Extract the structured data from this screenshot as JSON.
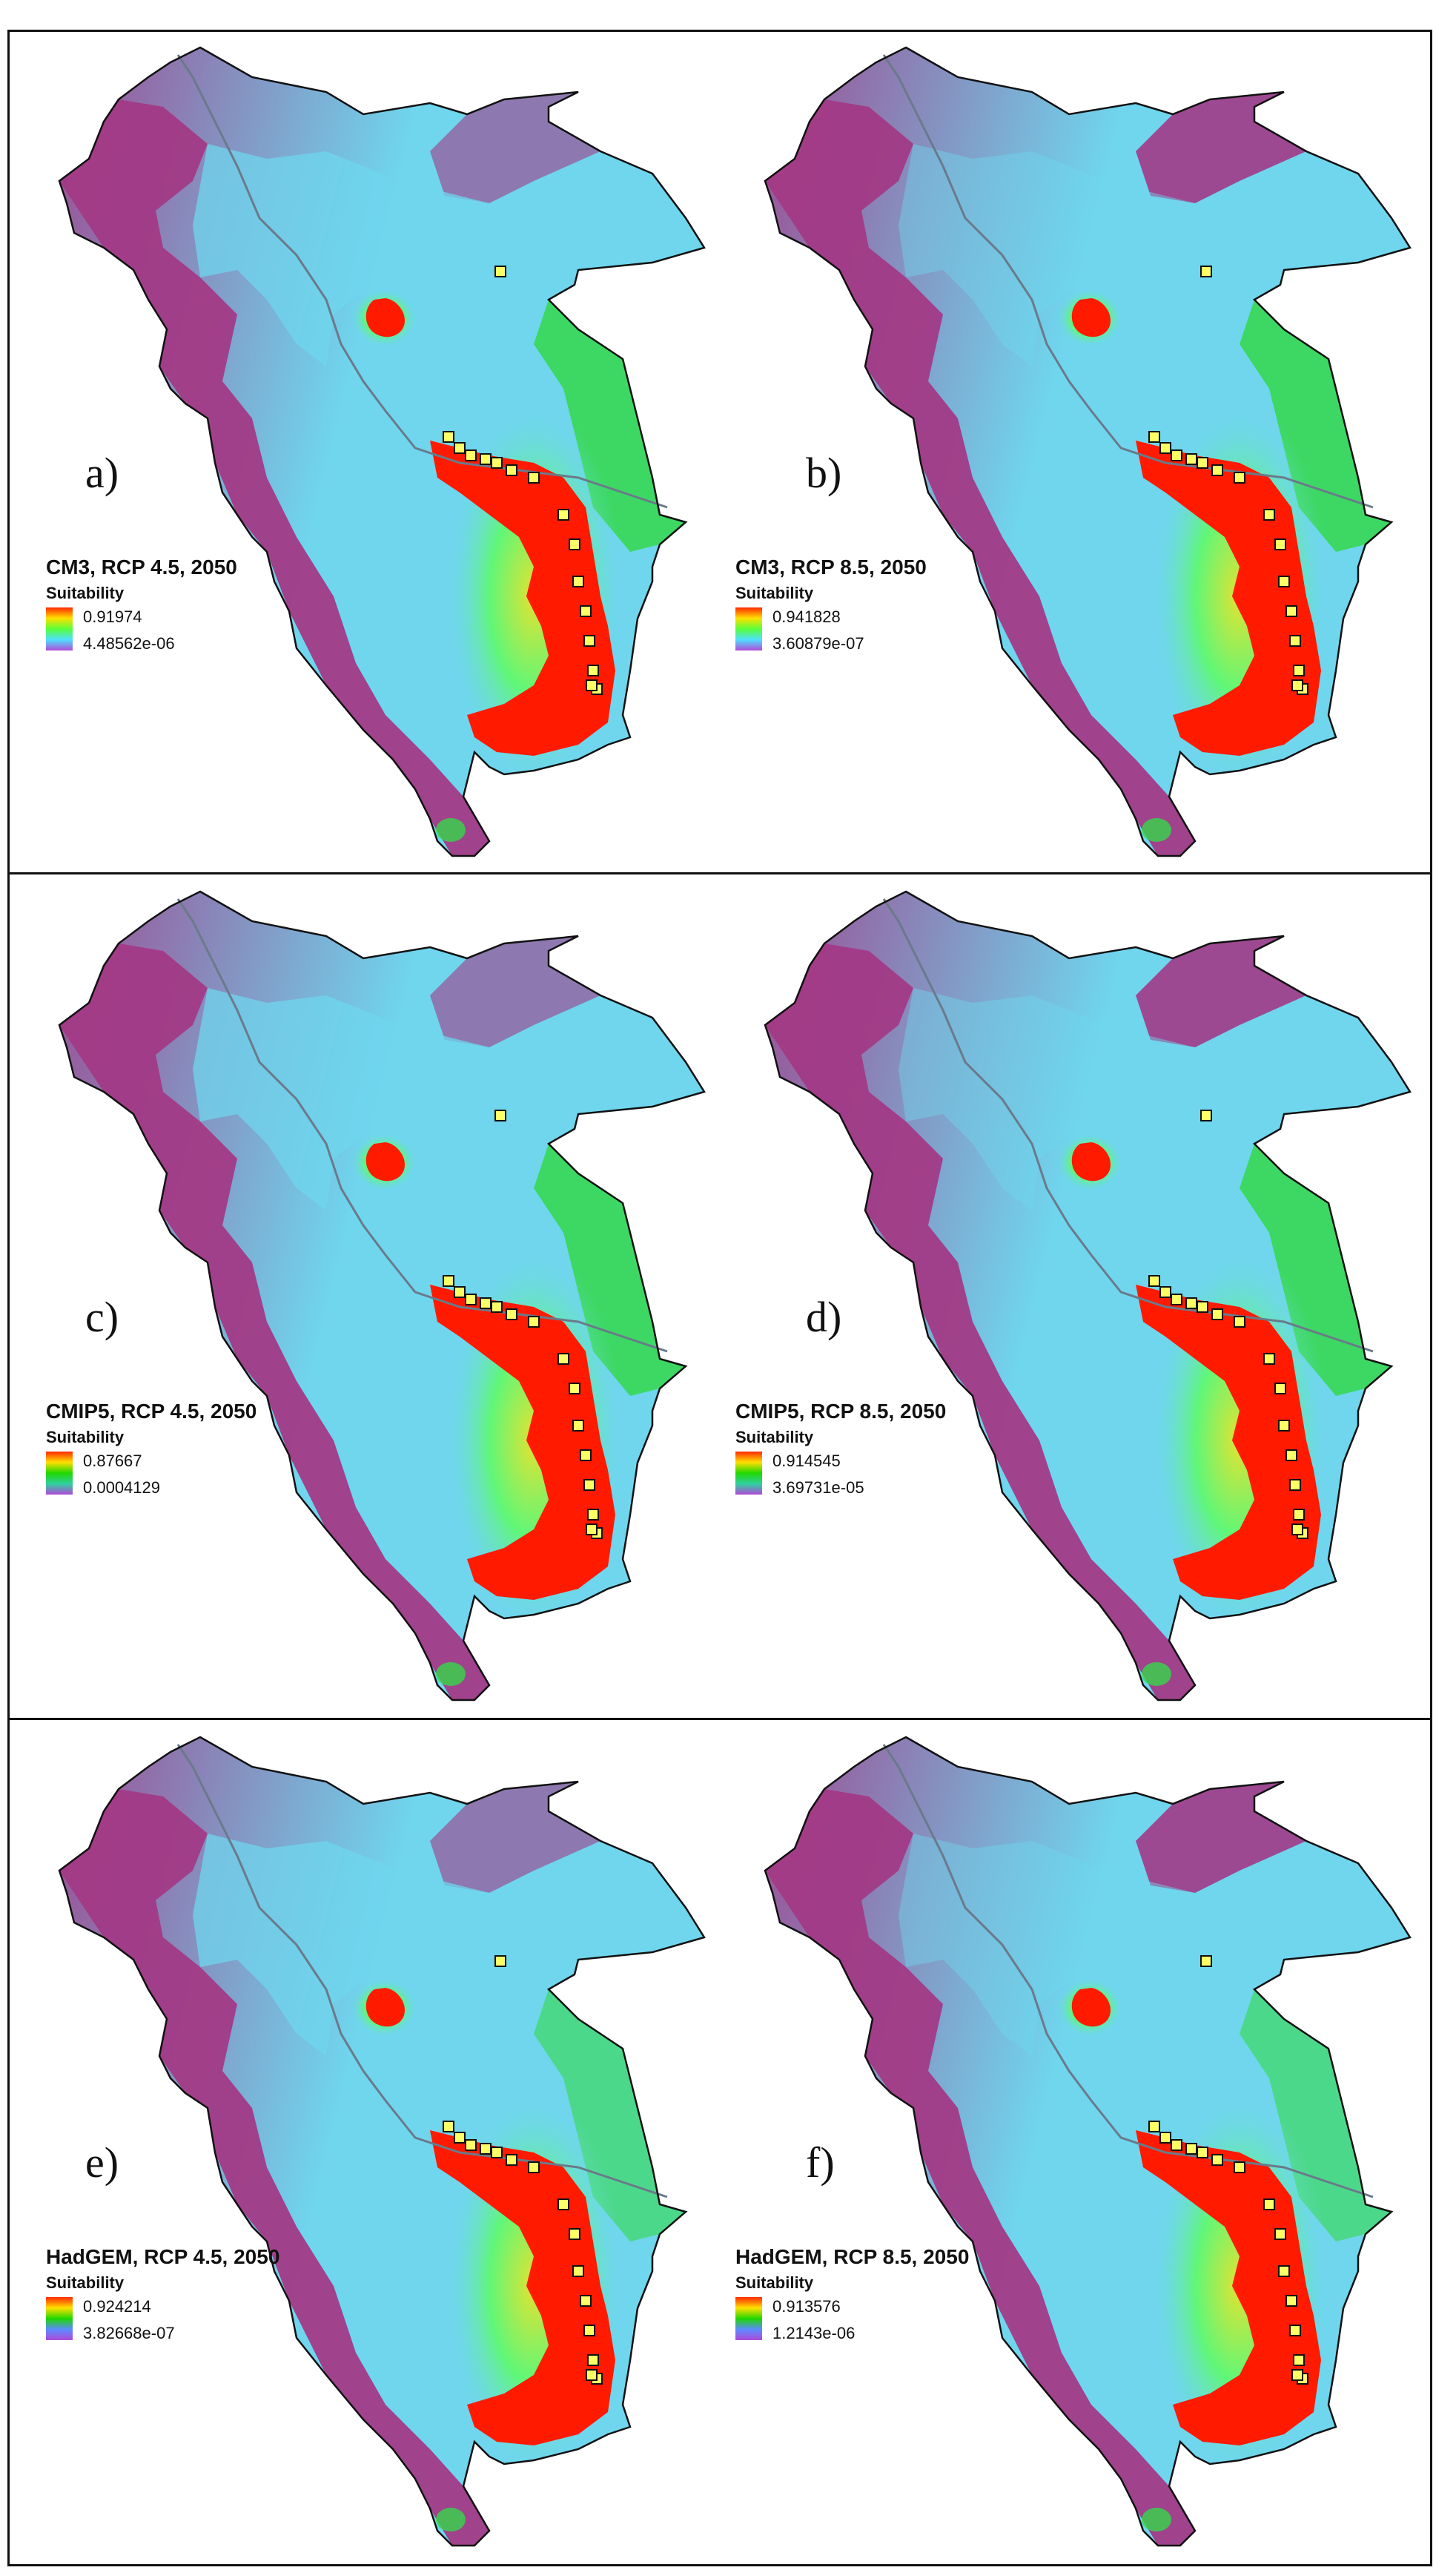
{
  "panels": [
    {
      "letter": "a)",
      "title": "CM3, RCP 4.5, 2050",
      "legend_label": "Suitability",
      "max": "0.91974",
      "min": "4.48562e-06",
      "ramp": [
        "#ff2a00",
        "#ffe000",
        "#58ff3a",
        "#4fe0ff",
        "#b04ad8"
      ]
    },
    {
      "letter": "b)",
      "title": "CM3, RCP 8.5, 2050",
      "legend_label": "Suitability",
      "max": "0.941828",
      "min": "3.60879e-07",
      "ramp": [
        "#ff2a00",
        "#ffe000",
        "#58ff3a",
        "#4fe0ff",
        "#b04ad8"
      ]
    },
    {
      "letter": "c)",
      "title": "CMIP5, RCP 4.5, 2050",
      "legend_label": "Suitability",
      "max": "0.87667",
      "min": "0.0004129",
      "ramp": [
        "#ff2a00",
        "#ffe000",
        "#20d800",
        "#2fd0a0",
        "#b04ad8"
      ]
    },
    {
      "letter": "d)",
      "title": "CMIP5, RCP 8.5, 2050",
      "legend_label": "Suitability",
      "max": "0.914545",
      "min": "3.69731e-05",
      "ramp": [
        "#ff2a00",
        "#ffe000",
        "#20d800",
        "#2fd0a0",
        "#b04ad8"
      ]
    },
    {
      "letter": "e)",
      "title": "HadGEM, RCP 4.5, 2050",
      "legend_label": "Suitability",
      "max": "0.924214",
      "min": "3.82668e-07",
      "ramp": [
        "#ff2a00",
        "#ffe000",
        "#20d800",
        "#5a8cff",
        "#b04ad8"
      ]
    },
    {
      "letter": "f)",
      "title": "HadGEM, RCP 8.5, 2050",
      "legend_label": "Suitability",
      "max": "0.913576",
      "min": "1.2143e-06",
      "ramp": [
        "#ff2a00",
        "#ffe000",
        "#20d800",
        "#5a8cff",
        "#b04ad8"
      ]
    }
  ],
  "colors": {
    "outline": "#111111",
    "low_suitability": "#a23a86",
    "mid_suitability": "#6fd6ee",
    "moderate_suitability": "#35d84a",
    "high_suitability": "#ff1a00",
    "river": "#6a7a8a",
    "occurrence_point": "#ffff66"
  }
}
